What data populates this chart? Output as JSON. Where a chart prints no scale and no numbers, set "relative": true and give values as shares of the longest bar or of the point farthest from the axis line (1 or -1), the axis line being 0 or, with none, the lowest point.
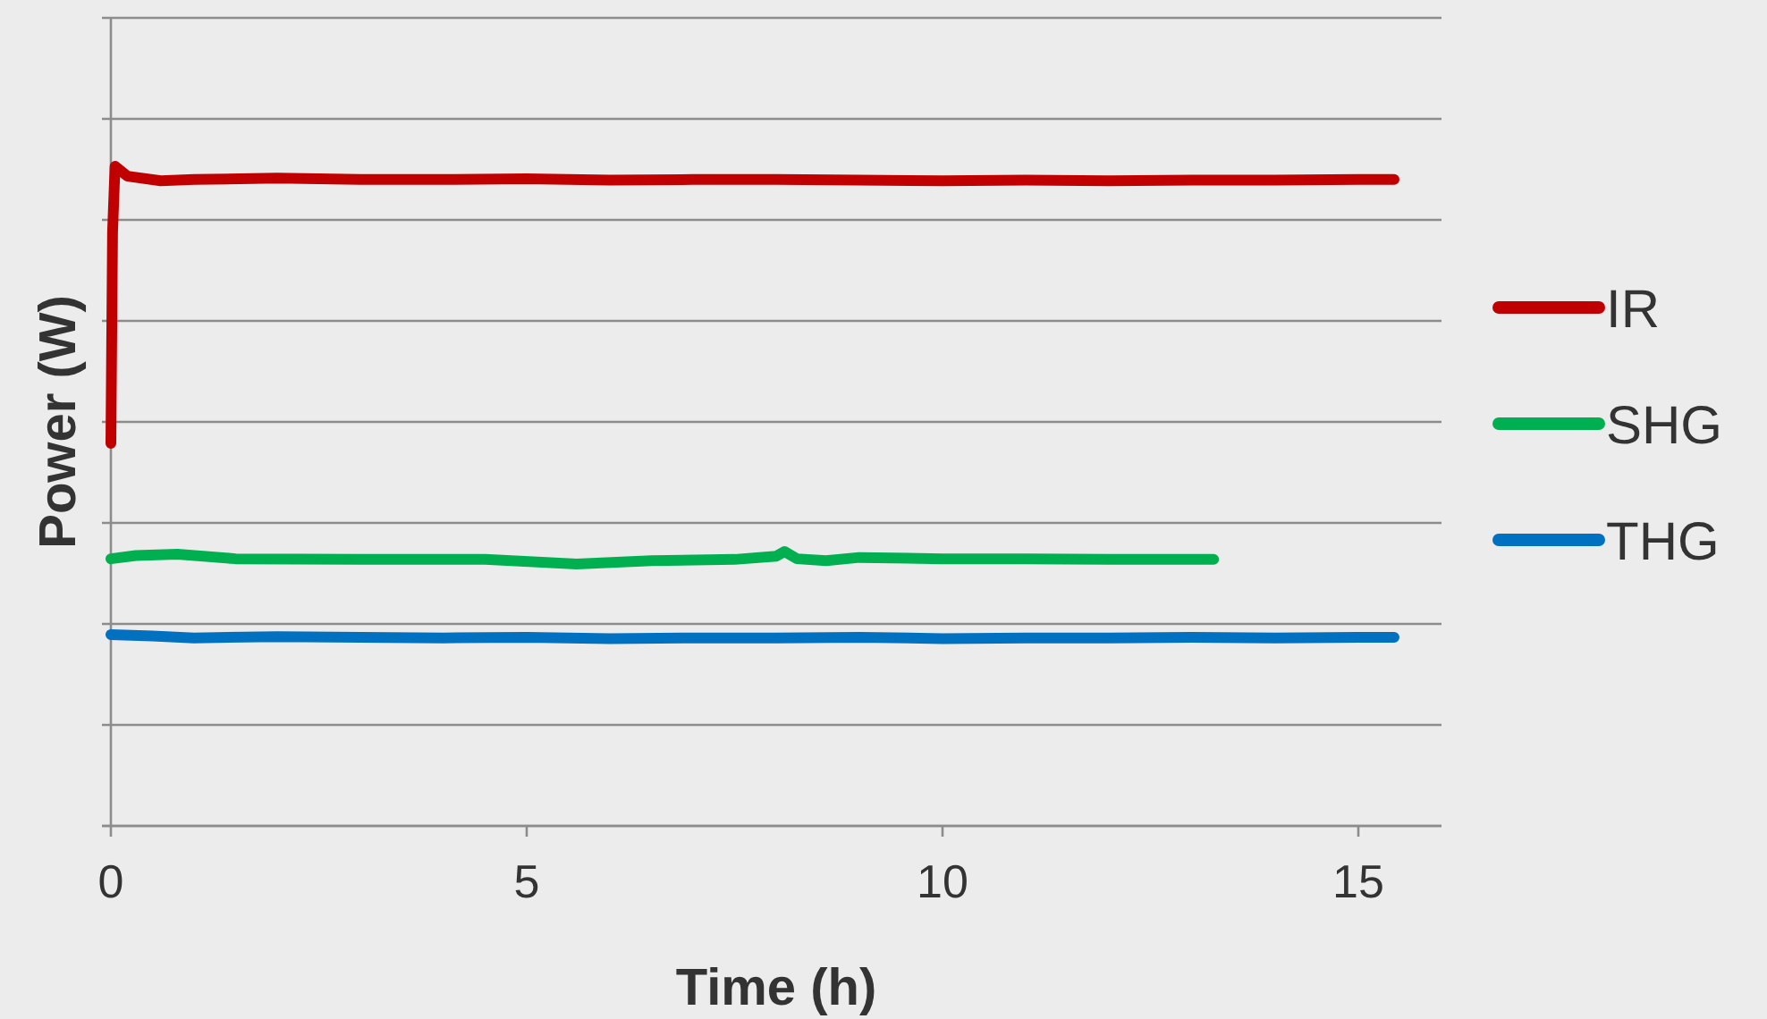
{
  "chart_data": {
    "type": "line",
    "xlabel": "Time (h)",
    "ylabel": "Power (W)",
    "relative": true,
    "xlim": [
      0,
      16
    ],
    "xticks": [
      0,
      5,
      10,
      15
    ],
    "grid": "y",
    "legend": "right",
    "line_style": "solid",
    "series": [
      {
        "name": "IR",
        "color": "#c00000",
        "x": [
          0,
          0.02,
          0.05,
          0.2,
          0.6,
          1,
          2,
          3,
          4,
          5,
          6,
          7,
          8,
          9,
          10,
          11,
          12,
          13,
          14,
          15,
          15.43
        ],
        "values": [
          0.58,
          0.9,
          1,
          0.985,
          0.978,
          0.98,
          0.982,
          0.98,
          0.98,
          0.981,
          0.979,
          0.98,
          0.98,
          0.979,
          0.978,
          0.979,
          0.978,
          0.979,
          0.979,
          0.98,
          0.98
        ]
      },
      {
        "name": "SHG",
        "color": "#00b050",
        "x": [
          0,
          0.3,
          0.8,
          1.5,
          3,
          4.5,
          5.6,
          6.5,
          7.5,
          8.0,
          8.1,
          8.25,
          8.6,
          9,
          10,
          11,
          12,
          13.26
        ],
        "values": [
          0.405,
          0.41,
          0.412,
          0.405,
          0.404,
          0.404,
          0.397,
          0.402,
          0.404,
          0.409,
          0.416,
          0.405,
          0.402,
          0.407,
          0.405,
          0.405,
          0.404,
          0.404
        ]
      },
      {
        "name": "THG",
        "color": "#0070c0",
        "x": [
          0,
          0.5,
          1,
          2,
          3,
          4,
          5,
          6,
          7,
          8,
          9,
          10,
          11,
          12,
          13,
          14,
          15,
          15.43
        ],
        "values": [
          0.29,
          0.288,
          0.285,
          0.287,
          0.286,
          0.285,
          0.286,
          0.284,
          0.285,
          0.285,
          0.286,
          0.284,
          0.285,
          0.285,
          0.286,
          0.285,
          0.286,
          0.286
        ]
      }
    ]
  }
}
